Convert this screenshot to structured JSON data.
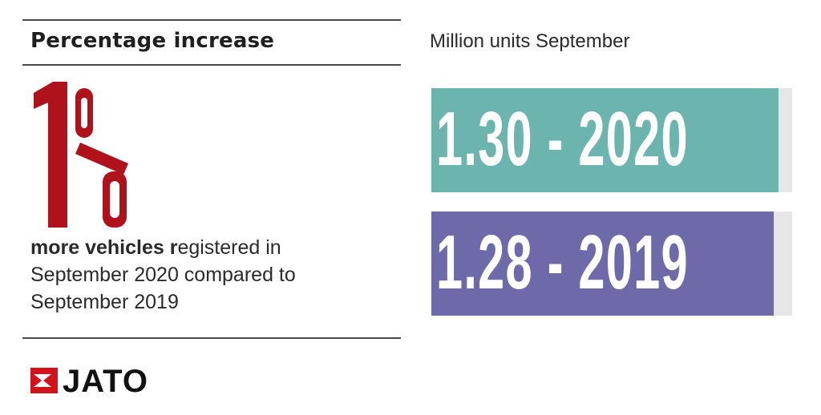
{
  "left_panel": {
    "heading": "Percentage increase",
    "big_number": "1%",
    "description_bold": "more vehicles r",
    "description_rest": "egistered in September 2020 compared to September 2019",
    "logo_text": "JATO"
  },
  "colors": {
    "accent_red": "#b0121b",
    "bar_2020": "#6bb5ae",
    "bar_2019": "#6e6aa9",
    "track": "#e6e6e6"
  },
  "chart_data": {
    "type": "bar",
    "orientation": "horizontal",
    "title": "Million units September",
    "categories": [
      "2020",
      "2019"
    ],
    "values": [
      1.3,
      1.28
    ],
    "labels": [
      "1.30 - 2020",
      "1.28 - 2019"
    ],
    "xlim": [
      0,
      1.35
    ],
    "grid": false,
    "legend": "none"
  }
}
